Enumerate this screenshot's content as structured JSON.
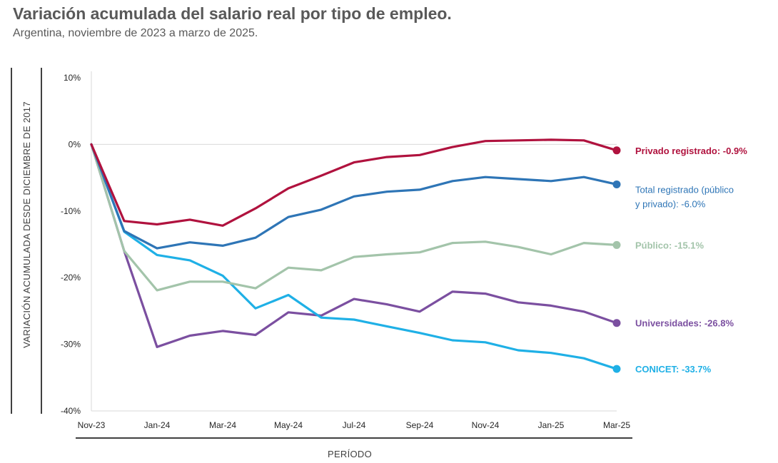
{
  "header": {
    "title": "Variación acumulada del salario real por tipo de empleo.",
    "subtitle": "Argentina, noviembre de 2023 a marzo de 2025."
  },
  "chart_data": {
    "type": "line",
    "title": "Variación acumulada del salario real por tipo de empleo.",
    "subtitle": "Argentina, noviembre de 2023 a marzo de 2025.",
    "xlabel": "PERÍODO",
    "ylabel": "VARIACIÓN ACUMULADA DESDE DICIEMBRE DE 2017",
    "ylim": [
      -40,
      10
    ],
    "yticks": [
      10,
      0,
      -10,
      -20,
      -30,
      -40
    ],
    "ytick_labels": [
      "10%",
      "0%",
      "-10%",
      "-20%",
      "-30%",
      "-40%"
    ],
    "x": [
      "Nov-23",
      "Dec-23",
      "Jan-24",
      "Feb-24",
      "Mar-24",
      "Apr-24",
      "May-24",
      "Jun-24",
      "Jul-24",
      "Aug-24",
      "Sep-24",
      "Oct-24",
      "Nov-24",
      "Dec-24",
      "Jan-25",
      "Feb-25",
      "Mar-25"
    ],
    "xtick_labels": [
      "Nov-23",
      "Jan-24",
      "Mar-24",
      "May-24",
      "Jul-24",
      "Sep-24",
      "Nov-24",
      "Jan-25",
      "Mar-25"
    ],
    "xtick_index": [
      0,
      2,
      4,
      6,
      8,
      10,
      12,
      14,
      16
    ],
    "grid": "horizontal-zero-line",
    "series": [
      {
        "name": "Privado registrado",
        "color": "#b0123e",
        "end_label": "Privado registrado: -0.9%",
        "label_bold": true,
        "values": [
          0,
          -11.5,
          -12.0,
          -11.3,
          -12.2,
          -9.6,
          -6.6,
          -4.7,
          -2.7,
          -1.9,
          -1.6,
          -0.4,
          0.5,
          0.6,
          0.7,
          0.6,
          -0.9
        ]
      },
      {
        "name": "Total registrado (público y privado)",
        "color": "#2e75b6",
        "end_label": "Total registrado (público y privado): -6.0%",
        "end_label_lines": [
          "Total registrado (público",
          "y privado): -6.0%"
        ],
        "label_bold": false,
        "values": [
          0,
          -13.0,
          -15.6,
          -14.7,
          -15.2,
          -14.0,
          -10.9,
          -9.8,
          -7.8,
          -7.1,
          -6.8,
          -5.5,
          -4.9,
          -5.2,
          -5.5,
          -4.9,
          -6.0
        ]
      },
      {
        "name": "Público",
        "color": "#a3c4aa",
        "end_label": "Público: -15.1%",
        "label_bold": true,
        "values": [
          0,
          -16.0,
          -21.9,
          -20.6,
          -20.6,
          -21.6,
          -18.5,
          -18.9,
          -16.9,
          -16.5,
          -16.2,
          -14.8,
          -14.6,
          -15.4,
          -16.5,
          -14.8,
          -15.1
        ]
      },
      {
        "name": "Universidades",
        "color": "#7b4fa0",
        "end_label": "Universidades: -26.8%",
        "label_bold": true,
        "values": [
          0,
          -16.0,
          -30.4,
          -28.7,
          -28.0,
          -28.6,
          -25.2,
          -25.7,
          -23.2,
          -24.0,
          -25.1,
          -22.1,
          -22.4,
          -23.7,
          -24.2,
          -25.1,
          -26.8
        ]
      },
      {
        "name": "CONICET",
        "color": "#1fb0e6",
        "end_label": "CONICET: -33.7%",
        "label_bold": true,
        "values": [
          0,
          -13.1,
          -16.6,
          -17.4,
          -19.7,
          -24.6,
          -22.6,
          -26.0,
          -26.3,
          -27.3,
          -28.3,
          -29.4,
          -29.7,
          -30.9,
          -31.3,
          -32.1,
          -33.7
        ]
      }
    ]
  }
}
